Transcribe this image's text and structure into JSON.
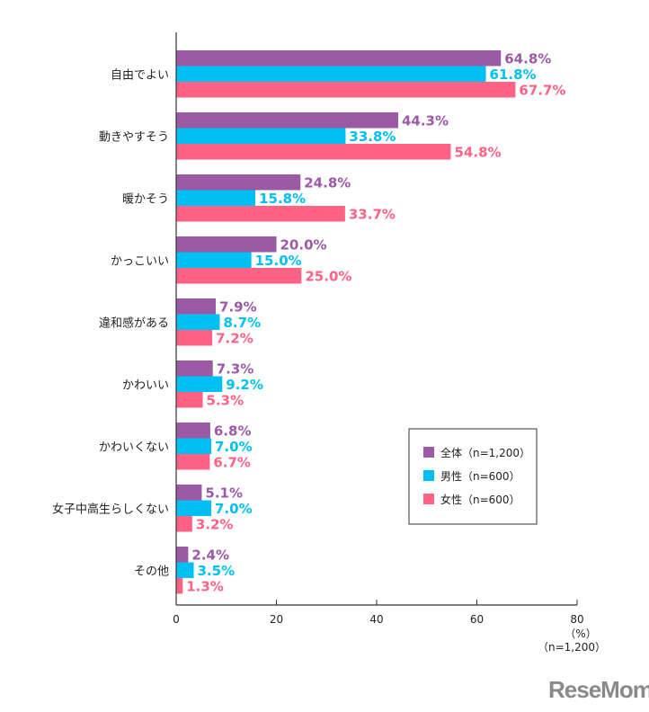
{
  "chart_data": {
    "type": "bar",
    "orientation": "horizontal",
    "categories": [
      "自由でよい",
      "動きやすそう",
      "暖かそう",
      "かっこいい",
      "違和感がある",
      "かわいい",
      "かわいくない",
      "女子中高生らしくない",
      "その他"
    ],
    "series": [
      {
        "name": "全体（n=1,200）",
        "color": "#9b59a6",
        "values": [
          64.8,
          44.3,
          24.8,
          20.0,
          7.9,
          7.3,
          6.8,
          5.1,
          2.4
        ]
      },
      {
        "name": "男性（n=600）",
        "color": "#00c0f3",
        "values": [
          61.8,
          33.8,
          15.8,
          15.0,
          8.7,
          9.2,
          7.0,
          7.0,
          3.5
        ]
      },
      {
        "name": "女性（n=600）",
        "color": "#ff6284",
        "values": [
          67.7,
          54.8,
          33.7,
          25.0,
          7.2,
          5.3,
          6.7,
          3.2,
          1.3
        ]
      }
    ],
    "xlim": [
      0,
      80
    ],
    "xticks": [
      0,
      20,
      40,
      60,
      80
    ],
    "xunit": "（%）",
    "sample_note": "（n=1,200）",
    "legend_position": "right",
    "grid": false
  },
  "logo": "ReseMom"
}
